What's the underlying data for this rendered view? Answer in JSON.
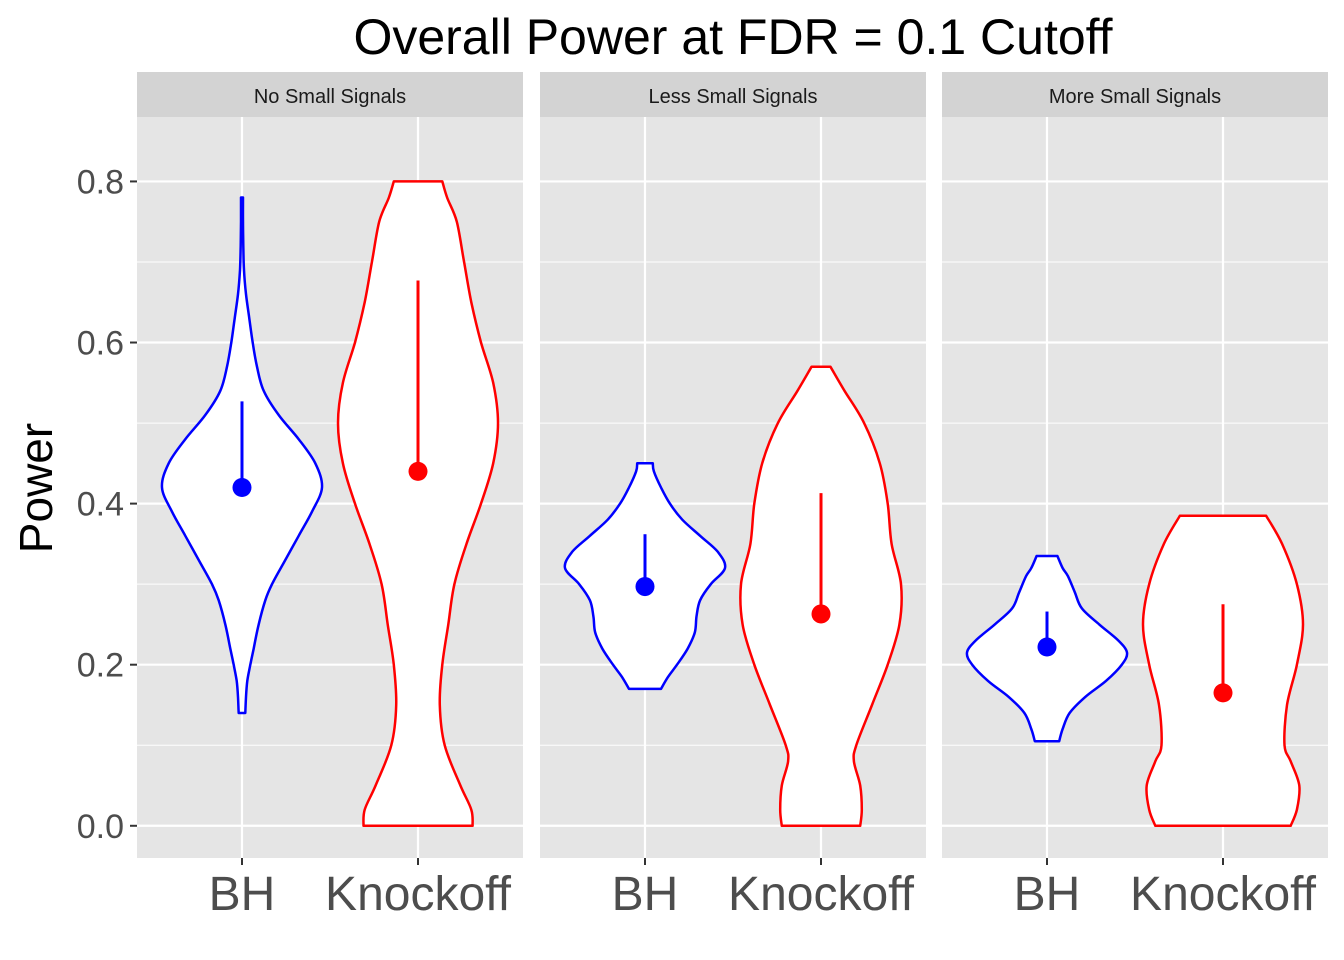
{
  "chart_data": {
    "type": "violin",
    "title": "Overall Power at FDR = 0.1 Cutoff",
    "ylabel": "Power",
    "xlabel": "",
    "ylim": [
      -0.04,
      0.88
    ],
    "yticks": [
      0.0,
      0.2,
      0.4,
      0.6,
      0.8
    ],
    "ytick_labels": [
      "0.0",
      "0.2",
      "0.4",
      "0.6",
      "0.8"
    ],
    "categories": [
      "BH",
      "Knockoff"
    ],
    "grid": true,
    "legend": "none",
    "colors": {
      "BH": "#0000ff",
      "Knockoff": "#ff0000",
      "panel_bg": "#e5e5e5",
      "strip_bg": "#d3d3d3",
      "grid": "#ffffff"
    },
    "panels": [
      {
        "label": "No Small Signals",
        "groups": [
          {
            "name": "BH",
            "mean": 0.42,
            "sd_upper": 0.527,
            "density": [
              [
                0.14,
                0.01
              ],
              [
                0.16,
                0.012
              ],
              [
                0.18,
                0.016
              ],
              [
                0.2,
                0.025
              ],
              [
                0.22,
                0.035
              ],
              [
                0.25,
                0.05
              ],
              [
                0.28,
                0.07
              ],
              [
                0.3,
                0.09
              ],
              [
                0.33,
                0.13
              ],
              [
                0.36,
                0.17
              ],
              [
                0.39,
                0.21
              ],
              [
                0.42,
                0.24
              ],
              [
                0.45,
                0.22
              ],
              [
                0.48,
                0.17
              ],
              [
                0.51,
                0.11
              ],
              [
                0.54,
                0.065
              ],
              [
                0.57,
                0.045
              ],
              [
                0.6,
                0.032
              ],
              [
                0.63,
                0.022
              ],
              [
                0.66,
                0.012
              ],
              [
                0.69,
                0.006
              ],
              [
                0.72,
                0.004
              ],
              [
                0.75,
                0.003
              ],
              [
                0.78,
                0.003
              ]
            ]
          },
          {
            "name": "Knockoff",
            "mean": 0.44,
            "sd_upper": 0.677,
            "density": [
              [
                0.0,
                0.045
              ],
              [
                0.02,
                0.044
              ],
              [
                0.05,
                0.035
              ],
              [
                0.1,
                0.022
              ],
              [
                0.15,
                0.018
              ],
              [
                0.2,
                0.02
              ],
              [
                0.25,
                0.025
              ],
              [
                0.3,
                0.03
              ],
              [
                0.35,
                0.04
              ],
              [
                0.4,
                0.052
              ],
              [
                0.45,
                0.062
              ],
              [
                0.5,
                0.066
              ],
              [
                0.55,
                0.062
              ],
              [
                0.6,
                0.052
              ],
              [
                0.65,
                0.044
              ],
              [
                0.7,
                0.038
              ],
              [
                0.75,
                0.032
              ],
              [
                0.78,
                0.024
              ],
              [
                0.8,
                0.02
              ]
            ]
          }
        ]
      },
      {
        "label": "Less Small Signals",
        "groups": [
          {
            "name": "BH",
            "mean": 0.297,
            "sd_upper": 0.362,
            "density": [
              [
                0.17,
                0.045
              ],
              [
                0.185,
                0.065
              ],
              [
                0.2,
                0.09
              ],
              [
                0.22,
                0.12
              ],
              [
                0.24,
                0.14
              ],
              [
                0.26,
                0.145
              ],
              [
                0.28,
                0.155
              ],
              [
                0.3,
                0.185
              ],
              [
                0.32,
                0.225
              ],
              [
                0.34,
                0.205
              ],
              [
                0.36,
                0.155
              ],
              [
                0.38,
                0.105
              ],
              [
                0.4,
                0.07
              ],
              [
                0.42,
                0.045
              ],
              [
                0.44,
                0.025
              ],
              [
                0.45,
                0.022
              ]
            ]
          },
          {
            "name": "Knockoff",
            "mean": 0.263,
            "sd_upper": 0.413,
            "density": [
              [
                0.0,
                0.05
              ],
              [
                0.02,
                0.052
              ],
              [
                0.05,
                0.05
              ],
              [
                0.08,
                0.042
              ],
              [
                0.1,
                0.045
              ],
              [
                0.15,
                0.065
              ],
              [
                0.2,
                0.085
              ],
              [
                0.25,
                0.1
              ],
              [
                0.3,
                0.102
              ],
              [
                0.35,
                0.09
              ],
              [
                0.4,
                0.085
              ],
              [
                0.45,
                0.075
              ],
              [
                0.5,
                0.055
              ],
              [
                0.54,
                0.03
              ],
              [
                0.57,
                0.012
              ]
            ]
          }
        ]
      },
      {
        "label": "More Small Signals",
        "groups": [
          {
            "name": "BH",
            "mean": 0.222,
            "sd_upper": 0.266,
            "density": [
              [
                0.105,
                0.035
              ],
              [
                0.12,
                0.045
              ],
              [
                0.14,
                0.065
              ],
              [
                0.16,
                0.11
              ],
              [
                0.18,
                0.17
              ],
              [
                0.2,
                0.215
              ],
              [
                0.215,
                0.23
              ],
              [
                0.23,
                0.205
              ],
              [
                0.25,
                0.15
              ],
              [
                0.27,
                0.1
              ],
              [
                0.29,
                0.08
              ],
              [
                0.31,
                0.06
              ],
              [
                0.32,
                0.045
              ],
              [
                0.335,
                0.03
              ]
            ]
          },
          {
            "name": "Knockoff",
            "mean": 0.165,
            "sd_upper": 0.275,
            "density": [
              [
                0.0,
                0.055
              ],
              [
                0.02,
                0.06
              ],
              [
                0.05,
                0.062
              ],
              [
                0.08,
                0.055
              ],
              [
                0.1,
                0.05
              ],
              [
                0.15,
                0.052
              ],
              [
                0.2,
                0.06
              ],
              [
                0.25,
                0.065
              ],
              [
                0.3,
                0.06
              ],
              [
                0.35,
                0.048
              ],
              [
                0.385,
                0.035
              ]
            ]
          }
        ]
      }
    ]
  }
}
